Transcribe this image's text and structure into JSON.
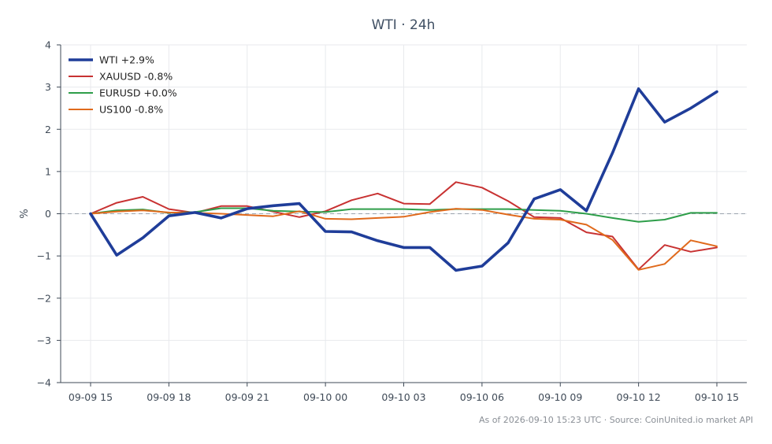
{
  "chart_data": {
    "type": "line",
    "title": "WTI · 24h",
    "xlabel": "",
    "ylabel": "%",
    "ylim": [
      -4,
      4
    ],
    "yticks": [
      -4,
      -3,
      -2,
      -1,
      0,
      1,
      2,
      3,
      4
    ],
    "ytick_labels": [
      "−4",
      "−3",
      "−2",
      "−1",
      "0",
      "1",
      "2",
      "3",
      "4"
    ],
    "x": [
      "09-09 15:00",
      "09-09 16:00",
      "09-09 17:00",
      "09-09 18:00",
      "09-09 19:00",
      "09-09 20:00",
      "09-09 21:00",
      "09-09 22:00",
      "09-09 23:00",
      "09-10 00:00",
      "09-10 01:00",
      "09-10 02:00",
      "09-10 03:00",
      "09-10 04:00",
      "09-10 05:00",
      "09-10 06:00",
      "09-10 07:00",
      "09-10 08:00",
      "09-10 09:00",
      "09-10 10:00",
      "09-10 11:00",
      "09-10 12:00",
      "09-10 13:00",
      "09-10 14:00",
      "09-10 15:00"
    ],
    "xticks": [
      "09-09 15",
      "09-09 18",
      "09-09 21",
      "09-10 00",
      "09-10 03",
      "09-10 06",
      "09-10 09",
      "09-10 12",
      "09-10 15"
    ],
    "grid": true,
    "zero_line": "dashed",
    "legend_position": "top-left",
    "series": [
      {
        "name": "WTI +2.9%",
        "color": "#1f3d99",
        "width": "thick",
        "values": [
          0,
          -0.98,
          -0.57,
          -0.05,
          0.03,
          -0.1,
          0.12,
          0.19,
          0.24,
          -0.42,
          -0.43,
          -0.64,
          -0.8,
          -0.8,
          -1.34,
          -1.24,
          -0.69,
          0.35,
          0.57,
          0.07,
          1.44,
          2.96,
          2.17,
          2.5,
          2.89
        ]
      },
      {
        "name": "XAUUSD -0.8%",
        "color": "#c83232",
        "width": "thin",
        "values": [
          0,
          0.26,
          0.4,
          0.11,
          0.02,
          0.18,
          0.18,
          0.05,
          -0.08,
          0.06,
          0.32,
          0.48,
          0.24,
          0.23,
          0.75,
          0.62,
          0.3,
          -0.08,
          -0.1,
          -0.44,
          -0.54,
          -1.32,
          -0.74,
          -0.9,
          -0.8
        ]
      },
      {
        "name": "EURUSD +0.0%",
        "color": "#2e9e4a",
        "width": "thin",
        "values": [
          0,
          0.08,
          0.1,
          0.02,
          0.04,
          0.13,
          0.13,
          0.07,
          0.05,
          0.04,
          0.11,
          0.11,
          0.11,
          0.09,
          0.11,
          0.11,
          0.11,
          0.09,
          0.07,
          0.0,
          -0.1,
          -0.19,
          -0.14,
          0.02,
          0.02
        ]
      },
      {
        "name": "US100 -0.8%",
        "color": "#e06a1c",
        "width": "thin",
        "values": [
          0,
          0.05,
          0.08,
          0.03,
          0.02,
          0.0,
          -0.03,
          -0.06,
          0.06,
          -0.12,
          -0.13,
          -0.1,
          -0.07,
          0.04,
          0.12,
          0.09,
          -0.02,
          -0.12,
          -0.14,
          -0.26,
          -0.62,
          -1.33,
          -1.19,
          -0.63,
          -0.77
        ]
      }
    ]
  },
  "footer": "As of 2026-09-10 15:23 UTC · Source: CoinUnited.io market API"
}
